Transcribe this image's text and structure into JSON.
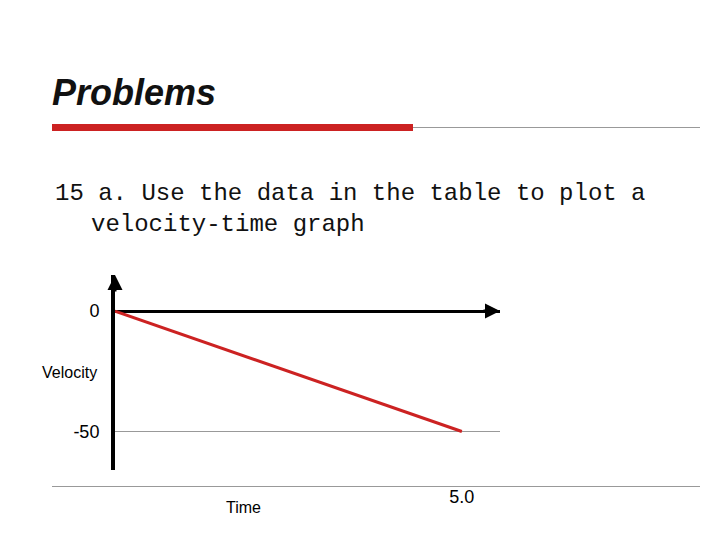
{
  "slide": {
    "heading": "Problems",
    "text": "15 a. Use the data in the table to plot a velocity-time graph"
  },
  "chart_data": {
    "type": "line",
    "x_label": "Time",
    "y_label": "Velocity",
    "x": [
      0,
      5.0
    ],
    "values": [
      0,
      -50
    ],
    "color": "#cc2222",
    "xlim": [
      0,
      5.55
    ],
    "ylim": [
      -66,
      15
    ],
    "xticks": [
      {
        "value": 5,
        "label": "5.0"
      }
    ],
    "yticks": [
      0,
      -50
    ],
    "grid": true
  }
}
